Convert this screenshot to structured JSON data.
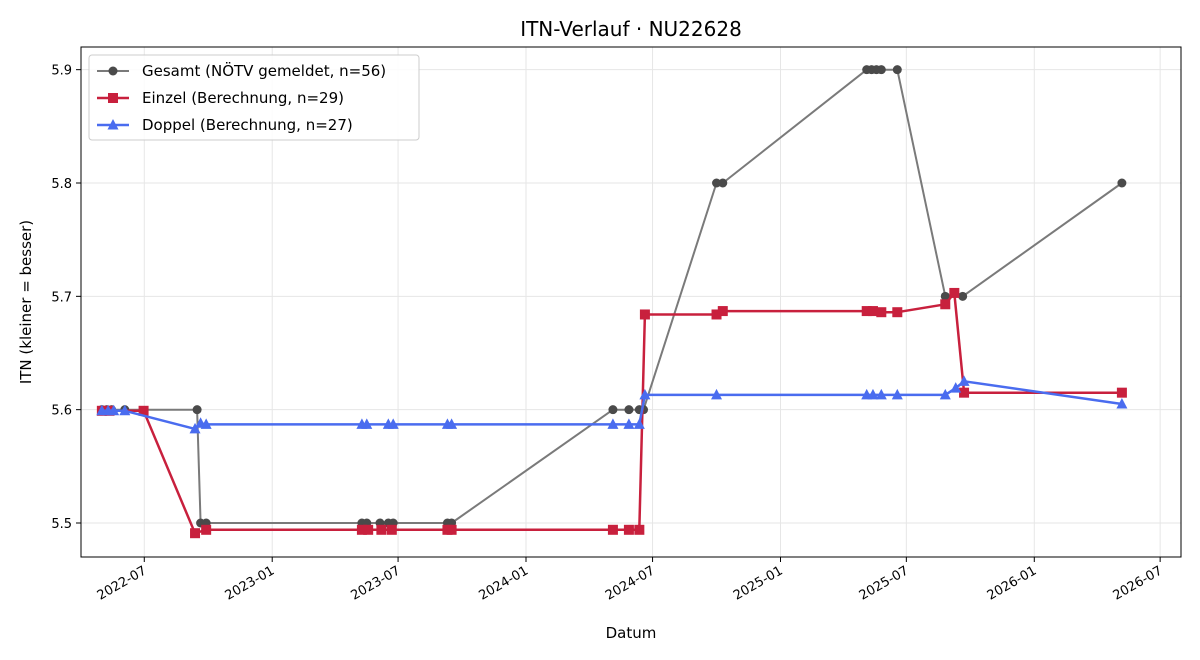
{
  "chart_data": {
    "type": "line",
    "title": "ITN-Verlauf · NU22628",
    "xlabel": "Datum",
    "ylabel": "ITN  (kleiner = besser)",
    "xlim": [
      "2022-04-01",
      "2026-07-31"
    ],
    "ylim": [
      5.47,
      5.92
    ],
    "x_ticks": [
      "2022-07-01",
      "2023-01-01",
      "2023-07-01",
      "2024-01-01",
      "2024-07-01",
      "2025-01-01",
      "2025-07-01",
      "2026-01-01",
      "2026-07-01"
    ],
    "x_tick_labels": [
      "2022-07",
      "2023-01",
      "2023-07",
      "2024-01",
      "2024-07",
      "2025-01",
      "2025-07",
      "2026-01",
      "2026-07"
    ],
    "y_ticks": [
      5.5,
      5.6,
      5.7,
      5.8,
      5.9
    ],
    "y_tick_labels": [
      "5.5",
      "5.6",
      "5.7",
      "5.8",
      "5.9"
    ],
    "grid": true,
    "legend_position": "top-left",
    "series": [
      {
        "name": "Gesamt (NÖTV gemeldet, n=56)",
        "color": "#7a7a7a",
        "marker": "circle",
        "points": [
          [
            "2022-05-01",
            5.6
          ],
          [
            "2022-05-08",
            5.6
          ],
          [
            "2022-05-15",
            5.6
          ],
          [
            "2022-06-03",
            5.6
          ],
          [
            "2022-09-15",
            5.6
          ],
          [
            "2022-09-20",
            5.5
          ],
          [
            "2022-09-28",
            5.5
          ],
          [
            "2023-05-10",
            5.5
          ],
          [
            "2023-05-17",
            5.5
          ],
          [
            "2023-06-05",
            5.5
          ],
          [
            "2023-06-17",
            5.5
          ],
          [
            "2023-06-24",
            5.5
          ],
          [
            "2023-09-10",
            5.5
          ],
          [
            "2023-09-16",
            5.5
          ],
          [
            "2024-05-05",
            5.6
          ],
          [
            "2024-05-28",
            5.6
          ],
          [
            "2024-06-12",
            5.6
          ],
          [
            "2024-06-18",
            5.6
          ],
          [
            "2024-10-01",
            5.8
          ],
          [
            "2024-10-10",
            5.8
          ],
          [
            "2025-05-05",
            5.9
          ],
          [
            "2025-05-12",
            5.9
          ],
          [
            "2025-05-19",
            5.9
          ],
          [
            "2025-05-26",
            5.9
          ],
          [
            "2025-06-18",
            5.9
          ],
          [
            "2025-08-26",
            5.7
          ],
          [
            "2025-09-20",
            5.7
          ],
          [
            "2026-05-07",
            5.8
          ]
        ]
      },
      {
        "name": "Einzel (Berechnung, n=29)",
        "color": "#c8203d",
        "marker": "square",
        "points": [
          [
            "2022-05-01",
            5.599
          ],
          [
            "2022-05-12",
            5.599
          ],
          [
            "2022-06-30",
            5.599
          ],
          [
            "2022-09-12",
            5.491
          ],
          [
            "2022-09-28",
            5.494
          ],
          [
            "2023-05-10",
            5.494
          ],
          [
            "2023-05-19",
            5.494
          ],
          [
            "2023-06-07",
            5.494
          ],
          [
            "2023-06-22",
            5.494
          ],
          [
            "2023-09-10",
            5.494
          ],
          [
            "2023-09-16",
            5.494
          ],
          [
            "2024-05-05",
            5.494
          ],
          [
            "2024-05-28",
            5.494
          ],
          [
            "2024-06-12",
            5.494
          ],
          [
            "2024-06-20",
            5.684
          ],
          [
            "2024-10-01",
            5.684
          ],
          [
            "2024-10-10",
            5.687
          ],
          [
            "2025-05-05",
            5.687
          ],
          [
            "2025-05-14",
            5.687
          ],
          [
            "2025-05-26",
            5.686
          ],
          [
            "2025-06-18",
            5.686
          ],
          [
            "2025-08-26",
            5.693
          ],
          [
            "2025-09-08",
            5.703
          ],
          [
            "2025-09-22",
            5.615
          ],
          [
            "2026-05-07",
            5.615
          ]
        ]
      },
      {
        "name": "Doppel (Berechnung, n=27)",
        "color": "#4a6cef",
        "marker": "triangle",
        "points": [
          [
            "2022-05-01",
            5.599
          ],
          [
            "2022-05-10",
            5.599
          ],
          [
            "2022-05-18",
            5.599
          ],
          [
            "2022-06-03",
            5.599
          ],
          [
            "2022-09-12",
            5.583
          ],
          [
            "2022-09-20",
            5.588
          ],
          [
            "2022-09-28",
            5.587
          ],
          [
            "2023-05-10",
            5.587
          ],
          [
            "2023-05-17",
            5.587
          ],
          [
            "2023-06-17",
            5.587
          ],
          [
            "2023-06-24",
            5.587
          ],
          [
            "2023-09-10",
            5.587
          ],
          [
            "2023-09-16",
            5.587
          ],
          [
            "2024-05-05",
            5.587
          ],
          [
            "2024-05-28",
            5.587
          ],
          [
            "2024-06-12",
            5.587
          ],
          [
            "2024-06-20",
            5.613
          ],
          [
            "2024-10-01",
            5.613
          ],
          [
            "2025-05-05",
            5.613
          ],
          [
            "2025-05-14",
            5.613
          ],
          [
            "2025-05-26",
            5.613
          ],
          [
            "2025-06-18",
            5.613
          ],
          [
            "2025-08-26",
            5.613
          ],
          [
            "2025-09-10",
            5.619
          ],
          [
            "2025-09-22",
            5.625
          ],
          [
            "2026-05-07",
            5.605
          ]
        ]
      }
    ]
  }
}
